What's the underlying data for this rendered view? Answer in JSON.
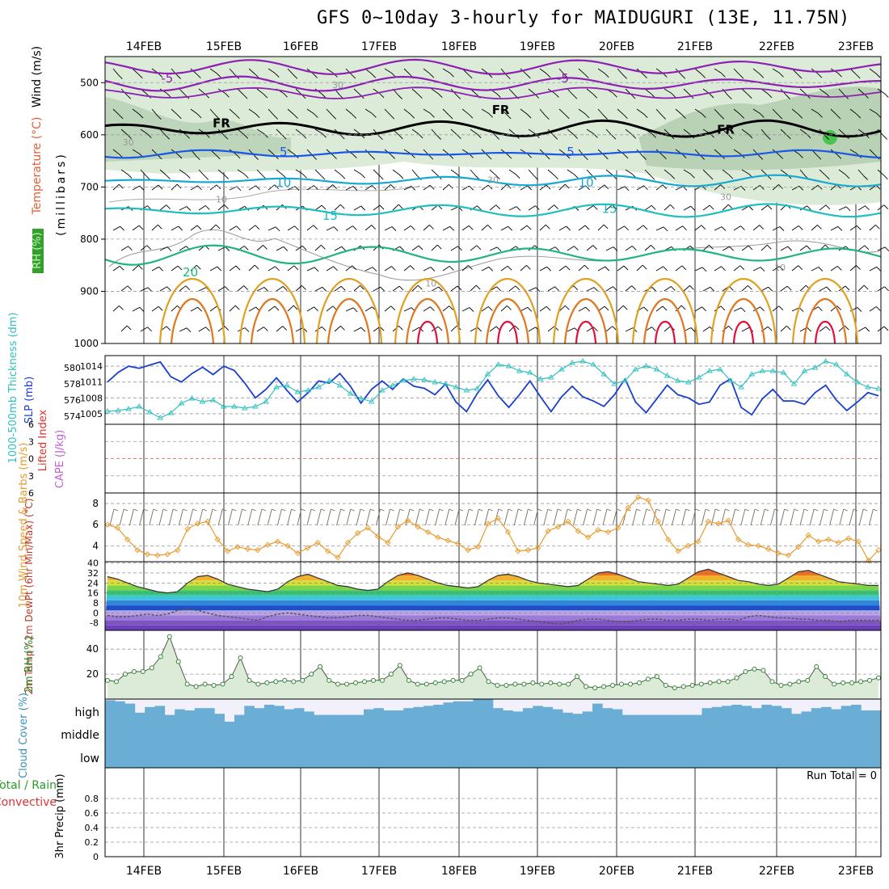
{
  "title": "GFS 0~10day 3-hourly for MAIDUGURI (13E, 11.75N)",
  "days": [
    "14FEB",
    "15FEB",
    "16FEB",
    "17FEB",
    "18FEB",
    "19FEB",
    "20FEB",
    "21FEB",
    "22FEB",
    "23FEB"
  ],
  "colors": {
    "temp_purple": "#8e1fb4",
    "temp_blue": "#1a57e6",
    "temp_cyan": "#18a9d0",
    "temp_teal": "#1fbfbf",
    "temp_green": "#21b57d",
    "temp_orange": "#e0a020",
    "temp_red": "#e0103a",
    "freeze": "#000000",
    "rh_fill": "#dcebd8",
    "rh_dark": "#a9c6a6",
    "slp": "#1a3fcf",
    "thick": "#33c0c0",
    "wind": "#e89a2c",
    "rh2m": "#2a8a2a",
    "cloud": "#6aaed6",
    "cloud_bg": "#f2f0fa",
    "zero": "#e05050"
  },
  "chart_data": [
    {
      "id": "upper_air",
      "type": "contour",
      "ylabel": "(millibars)",
      "side_labels": [
        "Wind (m/s)",
        "Temperature (°C)",
        "RH (%)"
      ],
      "yticks": [
        500,
        600,
        700,
        800,
        900,
        1000
      ],
      "ylim": [
        450,
        1000
      ],
      "contour_labels": [
        {
          "text": "-5",
          "t": 0.08,
          "p": 492
        },
        {
          "text": "-5",
          "t": 0.59,
          "p": 492
        },
        {
          "text": "FR",
          "t": 0.15,
          "p": 578
        },
        {
          "text": "FR",
          "t": 0.51,
          "p": 552
        },
        {
          "text": "FR",
          "t": 0.8,
          "p": 590
        },
        {
          "text": "5",
          "t": 0.23,
          "p": 633
        },
        {
          "text": "5",
          "t": 0.6,
          "p": 633
        },
        {
          "text": "10",
          "t": 0.23,
          "p": 692
        },
        {
          "text": "10",
          "t": 0.62,
          "p": 692
        },
        {
          "text": "15",
          "t": 0.29,
          "p": 755
        },
        {
          "text": "15",
          "t": 0.65,
          "p": 742
        },
        {
          "text": "20",
          "t": 0.11,
          "p": 864
        },
        {
          "text": "30",
          "t": 0.03,
          "p": 613
        },
        {
          "text": "30",
          "t": 0.3,
          "p": 503
        },
        {
          "text": "30",
          "t": 0.5,
          "p": 685
        },
        {
          "text": "30",
          "t": 0.8,
          "p": 717
        },
        {
          "text": "10",
          "t": 0.15,
          "p": 722
        },
        {
          "text": "10",
          "t": 0.42,
          "p": 883
        },
        {
          "text": "10",
          "t": 0.87,
          "p": 853
        }
      ]
    },
    {
      "id": "slp_thickness",
      "type": "line",
      "ylabel_left": "1000-500mb Thickness (dm)",
      "ylabel_right": "SLP (mb)",
      "yticks_left": [
        574,
        576,
        578,
        580
      ],
      "yticks_right": [
        1005,
        1008,
        1011,
        1014
      ],
      "series": [
        {
          "name": "SLP (mb)",
          "values": [
            1011,
            1012.8,
            1014,
            1013.6,
            1014.2,
            1014.8,
            1012,
            1011,
            1012.6,
            1013.8,
            1012.4,
            1014,
            1013.2,
            1010.8,
            1008,
            1009.6,
            1011.8,
            1009.4,
            1007.2,
            1009,
            1011.2,
            1010.8,
            1012.6,
            1010.2,
            1007,
            1009.6,
            1011.2,
            1009.6,
            1011.6,
            1010.2,
            1009.8,
            1008.6,
            1010.6,
            1007.2,
            1005.4,
            1008.8,
            1011.4,
            1008.4,
            1006.2,
            1008.6,
            1011.2,
            1008.2,
            1005.4,
            1008.2,
            1010.2,
            1008.2,
            1007.4,
            1006.4,
            1008.6,
            1011.6,
            1007.2,
            1005.2,
            1007.8,
            1010.4,
            1008.6,
            1008,
            1006.8,
            1007.2,
            1010.4,
            1011.6,
            1006.2,
            1004.8,
            1007.8,
            1009.6,
            1007.4,
            1007.4,
            1006.8,
            1009,
            1010.4,
            1007.6,
            1005.6,
            1007.2,
            1009,
            1008.4
          ]
        },
        {
          "name": "1000-500mb Thickness (dm)",
          "values": [
            574.6,
            574.7,
            574.9,
            575.2,
            574.5,
            573.8,
            574.4,
            575.6,
            576.2,
            575.8,
            576,
            575.2,
            575.2,
            575,
            575.2,
            575.8,
            577.6,
            577.8,
            577,
            577.2,
            577.6,
            578.4,
            577.8,
            576.8,
            576.2,
            575.8,
            577.2,
            577.8,
            578.4,
            578.6,
            578.5,
            578.2,
            578,
            577.6,
            577.2,
            577.4,
            579.2,
            580.4,
            580.2,
            579.6,
            579.4,
            578.6,
            578.8,
            579.8,
            580.6,
            580.8,
            580.4,
            579.2,
            578,
            578.4,
            579.8,
            580.2,
            579.8,
            579,
            578.4,
            578.2,
            578.8,
            579.6,
            579.8,
            578.4,
            577.6,
            579.2,
            579.6,
            579.6,
            579.4,
            578,
            579.6,
            580,
            580.8,
            580.4,
            579.2,
            578.2,
            577.6,
            577.4
          ]
        }
      ]
    },
    {
      "id": "cape_li",
      "type": "line",
      "ylabel_left": "Lifted Index",
      "ylabel_right": "CAPE (J/kg)",
      "yticks": [
        "6",
        "3",
        "0",
        "3",
        "6"
      ],
      "ylim": [
        -6,
        6
      ],
      "series": []
    },
    {
      "id": "wind10m",
      "type": "line",
      "ylabel": "10m Wind Speed & Barbs (m/s)",
      "yticks": [
        4,
        6,
        8
      ],
      "ylim": [
        2.5,
        9
      ],
      "series": [
        {
          "name": "10m Wind Speed (m/s)",
          "values": [
            6,
            5.7,
            4.6,
            3.6,
            3.2,
            3.1,
            3.2,
            3.6,
            5.6,
            6.1,
            6.3,
            4.6,
            3.5,
            3.9,
            3.7,
            3.6,
            4.1,
            4.4,
            4,
            3.3,
            3.8,
            4.3,
            3.5,
            2.9,
            4.3,
            5.2,
            5.7,
            4.9,
            4.3,
            5.8,
            6.4,
            5.8,
            5.3,
            4.8,
            4.5,
            4.2,
            3.6,
            3.9,
            6.1,
            6.6,
            5.3,
            3.5,
            3.6,
            3.8,
            5.4,
            5.8,
            6.3,
            5.4,
            4.8,
            5.5,
            5.3,
            5.7,
            7.6,
            8.6,
            8.3,
            6.3,
            4.6,
            3.5,
            4,
            4.4,
            6.3,
            6.1,
            6.4,
            4.6,
            4.1,
            4,
            3.7,
            3.3,
            3.1,
            3.9,
            5,
            4.4,
            4.6,
            4.3,
            4.7,
            4.4,
            2.6,
            3.6
          ]
        }
      ]
    },
    {
      "id": "temp2m",
      "type": "area",
      "ylabel": "2m Temp / 2m DewPt (6hr Min/Max) (°C)",
      "yticks": [
        -8,
        0,
        8,
        16,
        24,
        32,
        40
      ],
      "ylim": [
        -14,
        41
      ],
      "series": [
        {
          "name": "2m Temp",
          "values": [
            29,
            27,
            24,
            21,
            19,
            17,
            16,
            17,
            24,
            29,
            30,
            27,
            23,
            21,
            19,
            18,
            17,
            19,
            25,
            29,
            31,
            28,
            25,
            22,
            21,
            19,
            18,
            19,
            25,
            30,
            32,
            30,
            27,
            24,
            22,
            21,
            20,
            21,
            26,
            30,
            31,
            29,
            26,
            24,
            23,
            22,
            21,
            22,
            27,
            32,
            33,
            31,
            28,
            25,
            24,
            23,
            22,
            23,
            28,
            33,
            35,
            32,
            29,
            26,
            25,
            23,
            22,
            23,
            28,
            33,
            34,
            31,
            28,
            25,
            24,
            23,
            22,
            22
          ]
        },
        {
          "name": "2m DewPt",
          "values": [
            -2,
            -3,
            -3,
            -2,
            -1,
            -2,
            -1,
            2,
            3,
            2,
            0,
            -2,
            -3,
            -4,
            -5,
            -6,
            -3,
            -1,
            0,
            -1,
            -2,
            -3,
            -4,
            -4,
            -3,
            -2,
            -2,
            -3,
            -4,
            -5,
            -6,
            -6,
            -5,
            -4,
            -4,
            -5,
            -6,
            -6,
            -5,
            -4,
            -4,
            -5,
            -6,
            -7,
            -8,
            -9,
            -8,
            -6,
            -5,
            -5,
            -6,
            -7,
            -7,
            -6,
            -5,
            -5,
            -6,
            -6,
            -5,
            -5,
            -6,
            -5,
            -5,
            -6,
            -3,
            -2,
            -3,
            -4,
            -4,
            -5,
            -5,
            -6,
            -6,
            -7,
            -6,
            -6,
            -6,
            -6
          ]
        }
      ]
    },
    {
      "id": "rh2m",
      "type": "area",
      "ylabel": "2m RH (%)",
      "yticks": [
        20,
        40
      ],
      "ylim": [
        0,
        55
      ],
      "series": [
        {
          "name": "2m RH (%)",
          "values": [
            15,
            14,
            20,
            22,
            22,
            25,
            34,
            50,
            30,
            12,
            10,
            12,
            11,
            12,
            18,
            33,
            15,
            12,
            13,
            14,
            15,
            14,
            15,
            20,
            26,
            15,
            12,
            12,
            13,
            14,
            15,
            15,
            20,
            27,
            15,
            12,
            12,
            13,
            14,
            15,
            15,
            20,
            25,
            14,
            11,
            11,
            12,
            12,
            13,
            12,
            13,
            12,
            12,
            18,
            10,
            9,
            10,
            11,
            12,
            12,
            13,
            16,
            18,
            11,
            9,
            10,
            11,
            12,
            13,
            14,
            14,
            17,
            22,
            24,
            23,
            14,
            11,
            12,
            14,
            15,
            26,
            18,
            12,
            13,
            13,
            14,
            15,
            17
          ]
        }
      ]
    },
    {
      "id": "cloud",
      "type": "bar",
      "ylabel": "Cloud Cover (%)",
      "levels": [
        "high",
        "middle",
        "low"
      ],
      "series": [
        {
          "name": "high cloud cover (fraction)",
          "values": [
            0.95,
            0.9,
            0.8,
            0.4,
            0.65,
            0.7,
            0.3,
            0.55,
            0.5,
            0.6,
            0.6,
            0.35,
            0,
            0.3,
            0.7,
            0.6,
            0.75,
            0.7,
            0.55,
            0.6,
            0.45,
            0.3,
            0.3,
            0.3,
            0.3,
            0.3,
            0.55,
            0.6,
            0.5,
            0.5,
            0.6,
            0.65,
            0.7,
            0.75,
            0.85,
            0.9,
            0.9,
            1,
            1,
            0.6,
            0.5,
            0.45,
            0.6,
            0.7,
            0.65,
            0.55,
            0.4,
            0.35,
            0.45,
            0.8,
            0.6,
            0.55,
            0.3,
            0.3,
            0.3,
            0.3,
            0.3,
            0.3,
            0.3,
            0.3,
            0.6,
            0.65,
            0.7,
            0.75,
            0.7,
            0.6,
            0.75,
            0.7,
            0.6,
            0.35,
            0.45,
            0.6,
            0.65,
            0.55,
            0.7,
            0.75,
            0.5,
            0.5
          ]
        }
      ]
    },
    {
      "id": "precip",
      "type": "bar",
      "ylabel": "3hr Precip (mm)",
      "legend": [
        "Total / Rain",
        "Convective"
      ],
      "annotation": "Run Total = 0",
      "yticks": [
        0,
        0.2,
        0.4,
        0.6,
        0.8
      ],
      "ylim": [
        0,
        1
      ],
      "series": [
        {
          "name": "3hr Precip (mm)",
          "values": []
        }
      ]
    }
  ]
}
